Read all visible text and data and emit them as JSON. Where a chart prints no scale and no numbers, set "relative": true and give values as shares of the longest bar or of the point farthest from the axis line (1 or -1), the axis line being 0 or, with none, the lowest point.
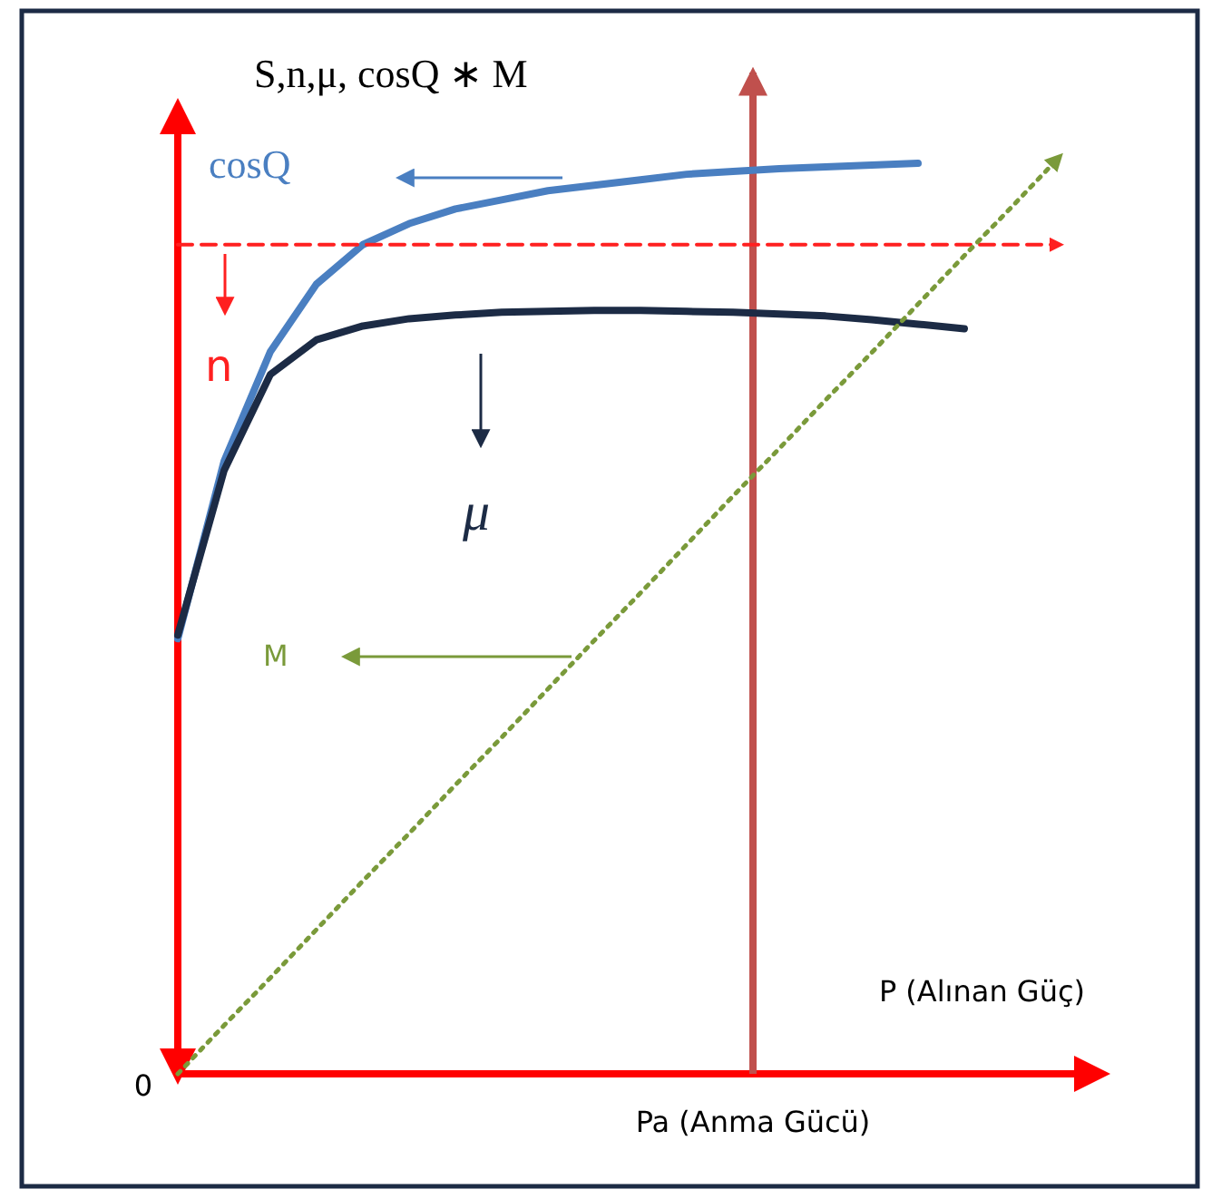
{
  "chart_data": {
    "type": "line",
    "relative": true,
    "ylabel": "S,n,μ, cosQ ∗ M",
    "xlabel": "P (Alınan Güç)",
    "legend": "left",
    "categories": [
      null,
      null,
      null,
      null,
      null,
      null,
      null,
      null,
      null,
      null,
      null,
      null,
      null,
      null,
      null,
      null,
      null,
      null,
      null,
      null,
      null
    ],
    "series": [
      {
        "name": "cosQ",
        "color": "#4a7fc1",
        "line_style": "solid",
        "values": [
          0.476,
          0.67,
          0.79,
          0.864,
          0.907,
          0.93,
          0.946,
          0.956,
          0.966,
          0.972,
          0.978,
          0.984,
          0.987,
          0.99,
          0.992,
          0.994,
          0.996,
          null,
          null,
          null,
          null
        ]
      },
      {
        "name": "n",
        "color": "#ff2020",
        "line_style": "dashed",
        "values": [
          0.907,
          0.907,
          0.907,
          0.907,
          0.907,
          0.907,
          0.907,
          0.907,
          0.907,
          0.907,
          0.907,
          0.907,
          0.907,
          0.907,
          0.907,
          0.907,
          0.907,
          0.907,
          0.907,
          0.907,
          null
        ]
      },
      {
        "name": "μ",
        "color": "#1c2b45",
        "line_style": "solid",
        "values": [
          0.48,
          0.66,
          0.765,
          0.803,
          0.818,
          0.826,
          0.83,
          0.833,
          0.834,
          0.835,
          0.835,
          0.834,
          0.833,
          0.831,
          0.829,
          0.825,
          0.82,
          0.815,
          null,
          null,
          null
        ]
      },
      {
        "name": "M",
        "color": "#7a9a3a",
        "line_style": "dotted",
        "values": [
          0,
          0.053,
          0.105,
          0.158,
          0.211,
          0.263,
          0.316,
          0.368,
          0.421,
          0.474,
          0.526,
          0.579,
          0.632,
          0.684,
          0.737,
          0.789,
          0.842,
          0.895,
          0.947,
          1,
          null
        ]
      }
    ],
    "annotations": [
      "Pa (Anma Gücü)",
      "0"
    ]
  }
}
